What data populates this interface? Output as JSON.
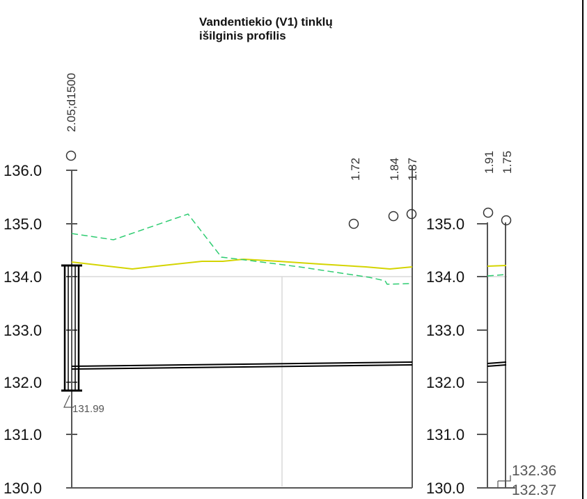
{
  "title": [
    "Vandentiekio (V1) tinklų",
    "išilginis profilis"
  ],
  "axes": {
    "left_ticks": [
      "136.0",
      "135.0",
      "134.0",
      "133.0",
      "132.0",
      "131.0",
      "130.0"
    ],
    "middle_ticks": [
      "135.0",
      "134.0",
      "133.0",
      "132.0",
      "131.0",
      "130.0"
    ]
  },
  "wells": {
    "left": {
      "label": "2.05;d1500",
      "elevation": 136.3
    },
    "mid": [
      {
        "label": "1.72",
        "elevation": 135.0
      },
      {
        "label": "1.84",
        "elevation": 135.2
      },
      {
        "label": "1.87",
        "elevation": 135.2
      }
    ],
    "right": [
      {
        "label": "1.91",
        "elevation": 135.2
      },
      {
        "label": "1.75",
        "elevation": 135.05
      }
    ]
  },
  "annotations": {
    "bottom_left": "131.99",
    "right_top": "132.36",
    "right_bottom": "132.37"
  },
  "colors": {
    "ground_line": "#d4d400",
    "design_line": "#2ecc71",
    "pipe": "#000000",
    "grid": "#d8d8d8",
    "axis": "#555555"
  },
  "chart_data": {
    "type": "line",
    "ylim": [
      130.0,
      136.0
    ],
    "series": [
      {
        "values": [
          134.3,
          134.15,
          134.2,
          134.3,
          134.3,
          134.35,
          134.25,
          134.15,
          134.18
        ]
      },
      {
        "values": [
          134.85,
          134.7,
          135.2,
          134.4,
          134.2,
          133.95,
          133.85,
          133.85
        ]
      },
      {
        "values": [
          132.27,
          132.3,
          132.37
        ]
      }
    ]
  }
}
